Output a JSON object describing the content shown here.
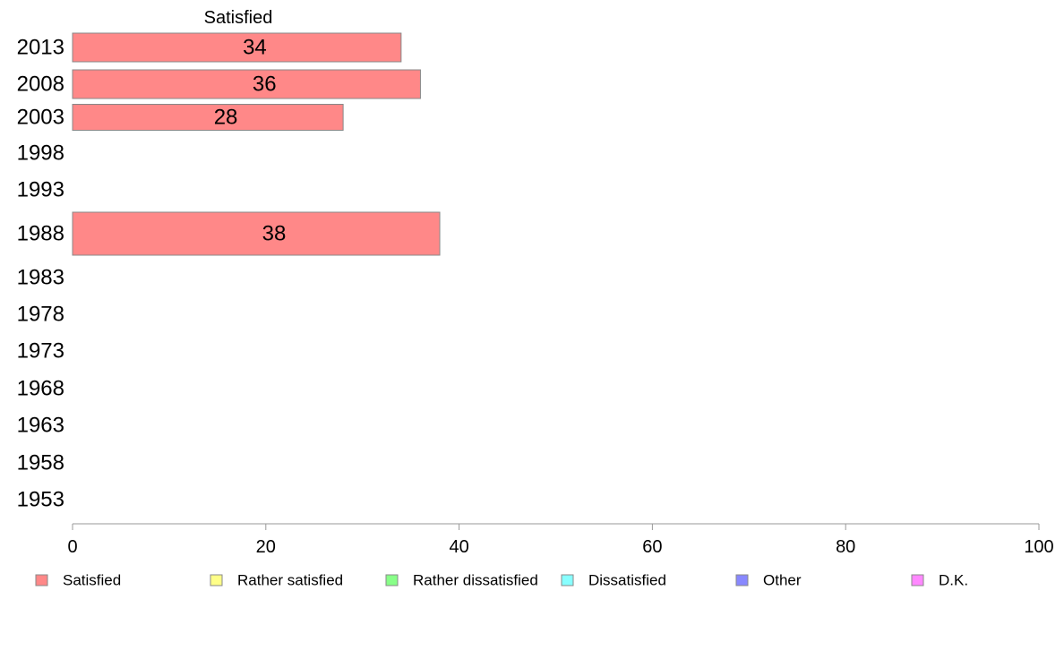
{
  "chart_data": {
    "type": "bar",
    "orientation": "horizontal",
    "stacked": true,
    "series_title": "Satisfied",
    "categories": [
      "2013",
      "2008",
      "2003",
      "1998",
      "1993",
      "1988",
      "1983",
      "1978",
      "1973",
      "1968",
      "1963",
      "1958",
      "1953"
    ],
    "series": [
      {
        "name": "Satisfied",
        "color": "#ff8888",
        "values": [
          34,
          36,
          28,
          null,
          null,
          38,
          null,
          null,
          null,
          null,
          null,
          null,
          null
        ],
        "labels": [
          "34",
          "36",
          "28",
          "",
          "",
          "38",
          "",
          "",
          "",
          "",
          "",
          "",
          ""
        ]
      }
    ],
    "xlim": [
      0,
      100
    ],
    "x_ticks": [
      "0",
      "20",
      "40",
      "60",
      "80",
      "100"
    ],
    "grid": false,
    "legend_position": "bottom",
    "legend": [
      {
        "label": "Satisfied",
        "color": "#ff8888"
      },
      {
        "label": "Rather satisfied",
        "color": "#ffff88"
      },
      {
        "label": "Rather dissatisfied",
        "color": "#88ff88"
      },
      {
        "label": "Dissatisfied",
        "color": "#88ffff"
      },
      {
        "label": "Other",
        "color": "#8888ff"
      },
      {
        "label": "D.K.",
        "color": "#ff88ff"
      }
    ]
  }
}
